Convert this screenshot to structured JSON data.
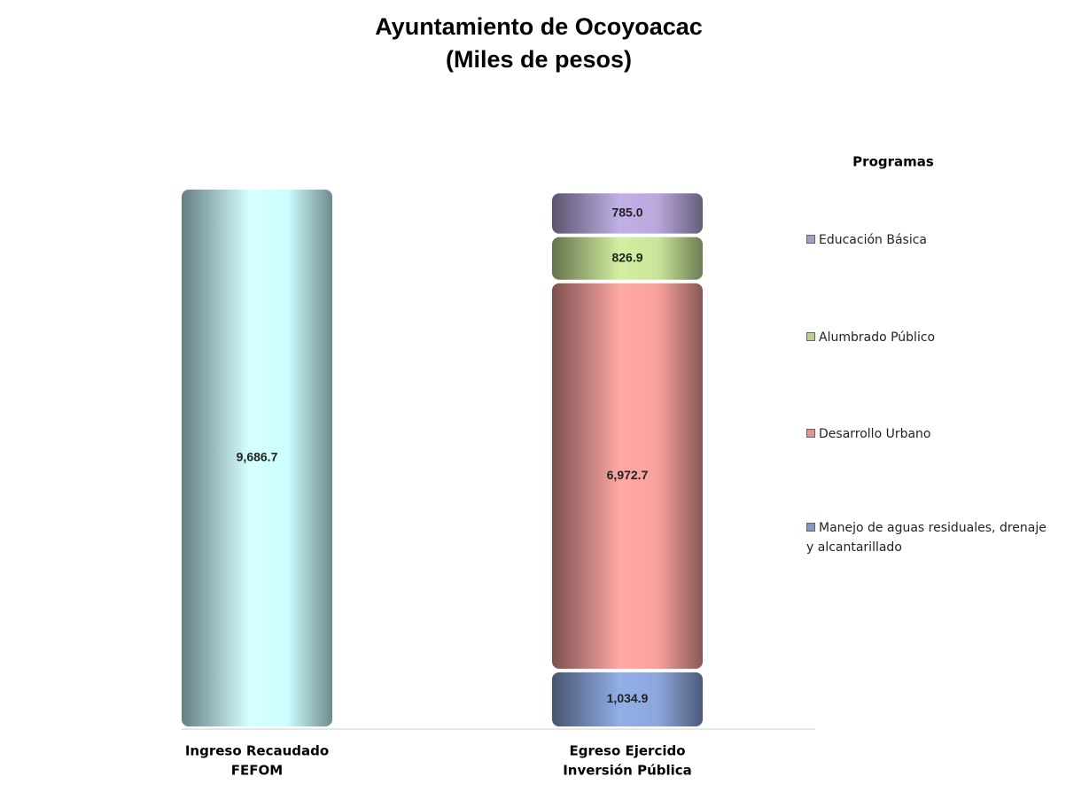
{
  "chart_data": {
    "type": "stacked_bar",
    "title": "Ayuntamiento de Ocoyoacac",
    "subtitle": "(Miles de pesos)",
    "categories": [
      [
        "Ingreso Recaudado",
        "FEFOM"
      ],
      [
        "Egreso Ejercido",
        "Inversión Pública"
      ]
    ],
    "legend_title": "Programas",
    "series": [
      {
        "color": "#b9e7ef",
        "values": [
          9686.7,
          null
        ],
        "value_labels": [
          "9,686.7",
          null
        ]
      },
      {
        "name": "Manejo de aguas residuales, drenaje y alcantarillado",
        "color": "#8098c9",
        "values": [
          null,
          1034.9
        ],
        "value_labels": [
          null,
          "1,034.9"
        ]
      },
      {
        "name": "Desarrollo Urbano",
        "color": "#e2928f",
        "values": [
          null,
          6972.7
        ],
        "value_labels": [
          null,
          "6,972.7"
        ]
      },
      {
        "name": "Alumbrado Público",
        "color": "#b8d08c",
        "values": [
          null,
          826.9
        ],
        "value_labels": [
          null,
          "826.9"
        ]
      },
      {
        "name": "Educación Básica",
        "color": "#a899c8",
        "values": [
          null,
          785.0
        ],
        "value_labels": [
          null,
          "785.0"
        ]
      }
    ]
  }
}
